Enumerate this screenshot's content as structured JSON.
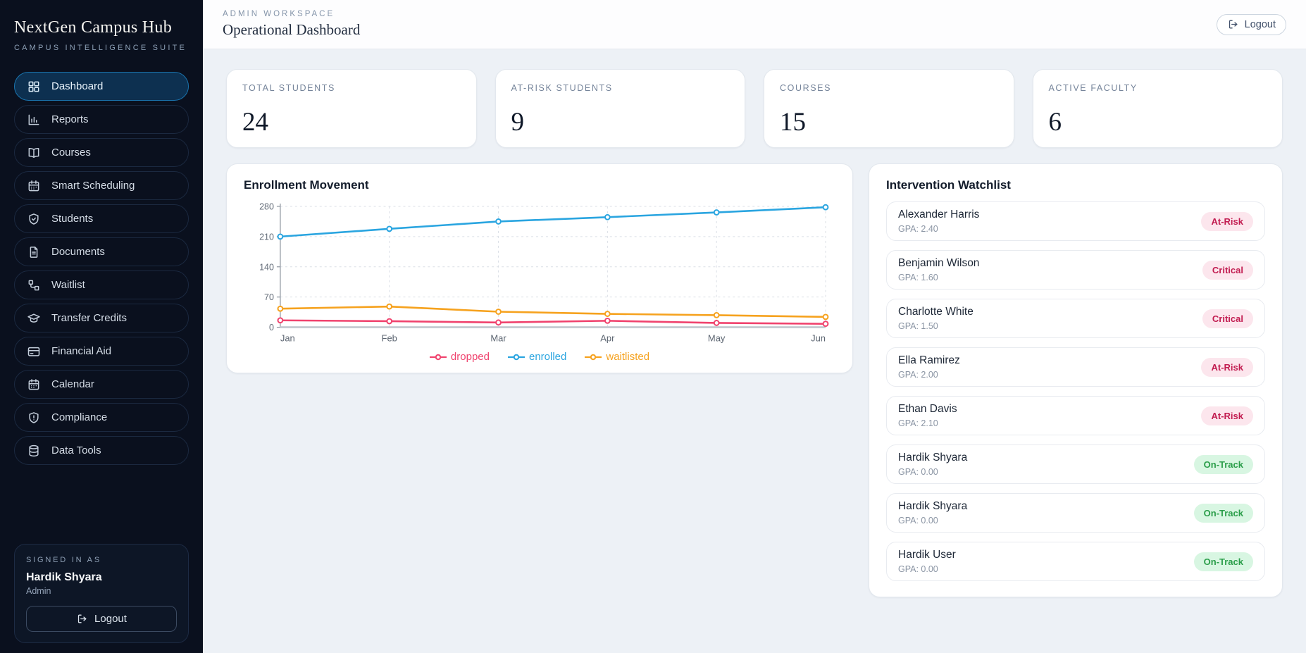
{
  "app": {
    "name": "NextGen Campus Hub",
    "tagline": "CAMPUS INTELLIGENCE SUITE"
  },
  "sidebar": {
    "items": [
      {
        "label": "Dashboard",
        "icon": "dashboard-grid-icon",
        "active": true
      },
      {
        "label": "Reports",
        "icon": "bar-chart-icon",
        "active": false
      },
      {
        "label": "Courses",
        "icon": "open-book-icon",
        "active": false
      },
      {
        "label": "Smart Scheduling",
        "icon": "calendar-icon",
        "active": false
      },
      {
        "label": "Students",
        "icon": "shield-check-icon",
        "active": false
      },
      {
        "label": "Documents",
        "icon": "document-icon",
        "active": false
      },
      {
        "label": "Waitlist",
        "icon": "workflow-icon",
        "active": false
      },
      {
        "label": "Transfer Credits",
        "icon": "graduation-cap-icon",
        "active": false
      },
      {
        "label": "Financial Aid",
        "icon": "credit-card-icon",
        "active": false
      },
      {
        "label": "Calendar",
        "icon": "calendar-icon",
        "active": false
      },
      {
        "label": "Compliance",
        "icon": "shield-alert-icon",
        "active": false
      },
      {
        "label": "Data Tools",
        "icon": "database-icon",
        "active": false
      }
    ],
    "signed_in": {
      "label": "SIGNED IN AS",
      "name": "Hardik Shyara",
      "role": "Admin",
      "logout_label": "Logout"
    }
  },
  "header": {
    "eyebrow": "ADMIN WORKSPACE",
    "title": "Operational Dashboard",
    "logout_label": "Logout"
  },
  "stats": [
    {
      "label": "TOTAL STUDENTS",
      "value": "24"
    },
    {
      "label": "AT-RISK STUDENTS",
      "value": "9"
    },
    {
      "label": "COURSES",
      "value": "15"
    },
    {
      "label": "ACTIVE FACULTY",
      "value": "6"
    }
  ],
  "chart_panel": {
    "title": "Enrollment Movement"
  },
  "chart_data": {
    "type": "line",
    "title": "Enrollment Movement",
    "x": [
      "Jan",
      "Feb",
      "Mar",
      "Apr",
      "May",
      "Jun"
    ],
    "series": [
      {
        "name": "dropped",
        "color": "#f0436e",
        "values": [
          16,
          14,
          11,
          15,
          10,
          8
        ]
      },
      {
        "name": "enrolled",
        "color": "#2aa5e0",
        "values": [
          210,
          228,
          245,
          255,
          266,
          278
        ]
      },
      {
        "name": "waitlisted",
        "color": "#f6a21e",
        "values": [
          43,
          48,
          36,
          31,
          28,
          24
        ]
      }
    ],
    "ylim": [
      0,
      280
    ],
    "yticks": [
      0,
      70,
      140,
      210,
      280
    ],
    "grid": true,
    "legend_position": "bottom"
  },
  "watchlist": {
    "title": "Intervention Watchlist",
    "students": [
      {
        "name": "Alexander Harris",
        "gpa": "GPA: 2.40",
        "status": "At-Risk"
      },
      {
        "name": "Benjamin Wilson",
        "gpa": "GPA: 1.60",
        "status": "Critical"
      },
      {
        "name": "Charlotte White",
        "gpa": "GPA: 1.50",
        "status": "Critical"
      },
      {
        "name": "Ella Ramirez",
        "gpa": "GPA: 2.00",
        "status": "At-Risk"
      },
      {
        "name": "Ethan Davis",
        "gpa": "GPA: 2.10",
        "status": "At-Risk"
      },
      {
        "name": "Hardik Shyara",
        "gpa": "GPA: 0.00",
        "status": "On-Track"
      },
      {
        "name": "Hardik Shyara",
        "gpa": "GPA: 0.00",
        "status": "On-Track"
      },
      {
        "name": "Hardik User",
        "gpa": "GPA: 0.00",
        "status": "On-Track"
      }
    ]
  },
  "colors": {
    "sidebar_bg": "#0a101e",
    "active_item_bg": "#0d3050",
    "active_item_border": "#1a74ae",
    "content_bg": "#edf1f6",
    "badge_risk_bg": "#fce6ed",
    "badge_risk_text": "#c21d51",
    "badge_ok_bg": "#d8f6e2",
    "badge_ok_text": "#2b9e4a",
    "series_dropped": "#f0436e",
    "series_enrolled": "#2aa5e0",
    "series_waitlisted": "#f6a21e"
  }
}
